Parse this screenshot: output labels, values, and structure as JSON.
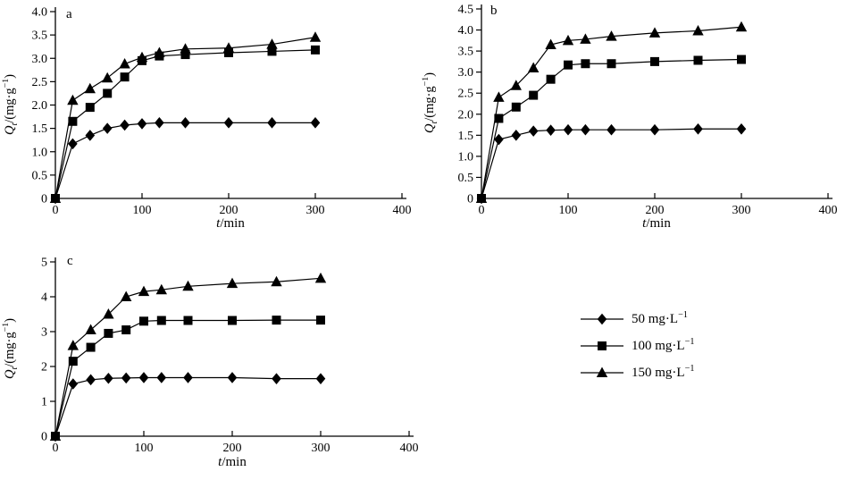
{
  "figure": {
    "background": "#ffffff",
    "ink": "#000000"
  },
  "labels": {
    "y": {
      "var": "Q",
      "sub": "t",
      "unit": "/(mg·g",
      "sup": "−1",
      "close": ")"
    },
    "x": {
      "var": "t",
      "unit": "/min"
    }
  },
  "legend": {
    "position": "bottom-right-of-figure",
    "items": [
      {
        "marker": "diamond",
        "label": "50 mg·L",
        "sup": "−1"
      },
      {
        "marker": "square",
        "label": "100 mg·L",
        "sup": "−1"
      },
      {
        "marker": "triangle",
        "label": "150 mg·L",
        "sup": "−1"
      }
    ]
  },
  "chart_data": [
    {
      "type": "line",
      "panel_label": "a",
      "xlabel": "t/min",
      "ylabel": "Qt/(mg·g−1)",
      "xlim": [
        0,
        400
      ],
      "ylim": [
        0,
        4.0
      ],
      "xticks": [
        "0",
        "100",
        "200",
        "300",
        "400"
      ],
      "yticks": [
        "0",
        "0.5",
        "1.0",
        "1.5",
        "2.0",
        "2.5",
        "3.0",
        "3.5",
        "4.0"
      ],
      "grid": false,
      "x": [
        0,
        20,
        40,
        60,
        80,
        100,
        120,
        150,
        200,
        250,
        300
      ],
      "series": [
        {
          "name": "50 mg·L−1",
          "marker": "diamond",
          "values": [
            0,
            1.17,
            1.35,
            1.5,
            1.57,
            1.6,
            1.62,
            1.62,
            1.62,
            1.62,
            1.62
          ]
        },
        {
          "name": "100 mg·L−1",
          "marker": "square",
          "values": [
            0,
            1.65,
            1.95,
            2.25,
            2.6,
            2.95,
            3.05,
            3.08,
            3.12,
            3.15,
            3.18
          ]
        },
        {
          "name": "150 mg·L−1",
          "marker": "triangle",
          "values": [
            0,
            2.1,
            2.35,
            2.58,
            2.88,
            3.02,
            3.12,
            3.2,
            3.22,
            3.3,
            3.45
          ]
        }
      ]
    },
    {
      "type": "line",
      "panel_label": "b",
      "xlabel": "t/min",
      "ylabel": "Qt/(mg·g−1)",
      "xlim": [
        0,
        400
      ],
      "ylim": [
        0,
        4.5
      ],
      "xticks": [
        "0",
        "100",
        "200",
        "300",
        "400"
      ],
      "yticks": [
        "0",
        "0.5",
        "1.0",
        "1.5",
        "2.0",
        "2.5",
        "3.0",
        "3.5",
        "4.0",
        "4.5"
      ],
      "grid": false,
      "x": [
        0,
        20,
        40,
        60,
        80,
        100,
        120,
        150,
        200,
        250,
        300
      ],
      "series": [
        {
          "name": "50 mg·L−1",
          "marker": "diamond",
          "values": [
            0,
            1.4,
            1.5,
            1.6,
            1.62,
            1.63,
            1.63,
            1.63,
            1.63,
            1.65,
            1.65
          ]
        },
        {
          "name": "100 mg·L−1",
          "marker": "square",
          "values": [
            0,
            1.9,
            2.17,
            2.45,
            2.83,
            3.17,
            3.2,
            3.2,
            3.25,
            3.28,
            3.3
          ]
        },
        {
          "name": "150 mg·L−1",
          "marker": "triangle",
          "values": [
            0,
            2.4,
            2.68,
            3.1,
            3.65,
            3.75,
            3.78,
            3.85,
            3.93,
            3.98,
            4.07
          ]
        }
      ]
    },
    {
      "type": "line",
      "panel_label": "c",
      "xlabel": "t/min",
      "ylabel": "Qt/(mg·g−1)",
      "xlim": [
        0,
        400
      ],
      "ylim": [
        0,
        5
      ],
      "xticks": [
        "0",
        "100",
        "200",
        "300",
        "400"
      ],
      "yticks": [
        "0",
        "1",
        "2",
        "3",
        "4",
        "5"
      ],
      "grid": false,
      "x": [
        0,
        20,
        40,
        60,
        80,
        100,
        120,
        150,
        200,
        250,
        300
      ],
      "series": [
        {
          "name": "50 mg·L−1",
          "marker": "diamond",
          "values": [
            0,
            1.5,
            1.62,
            1.66,
            1.67,
            1.68,
            1.68,
            1.68,
            1.68,
            1.65,
            1.65
          ]
        },
        {
          "name": "100 mg·L−1",
          "marker": "square",
          "values": [
            0,
            2.15,
            2.55,
            2.95,
            3.05,
            3.3,
            3.32,
            3.32,
            3.32,
            3.33,
            3.33
          ]
        },
        {
          "name": "150 mg·L−1",
          "marker": "triangle",
          "values": [
            0,
            2.6,
            3.05,
            3.5,
            4.0,
            4.15,
            4.2,
            4.3,
            4.38,
            4.43,
            4.53
          ]
        }
      ]
    }
  ]
}
